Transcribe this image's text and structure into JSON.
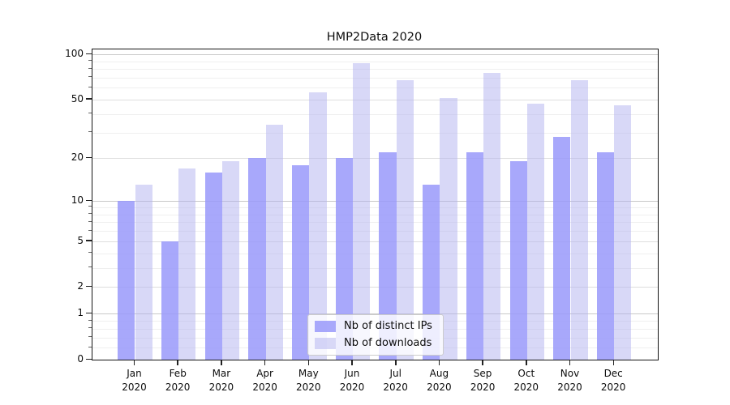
{
  "title": "HMP2Data 2020",
  "chart_data": {
    "type": "bar",
    "title": "HMP2Data 2020",
    "categories": [
      "Jan",
      "Feb",
      "Mar",
      "Apr",
      "May",
      "Jun",
      "Jul",
      "Aug",
      "Sep",
      "Oct",
      "Nov",
      "Dec"
    ],
    "category_year_line": "2020",
    "series": [
      {
        "name": "Nb of distinct IPs",
        "color": "#9999fa",
        "alpha": 0.85,
        "values": [
          10,
          5,
          16,
          20,
          18,
          20,
          22,
          13,
          22,
          19,
          28,
          22
        ]
      },
      {
        "name": "Nb of downloads",
        "color": "#b1b1ef",
        "alpha": 0.5,
        "values": [
          13,
          17,
          19,
          34,
          56,
          87,
          67,
          51,
          75,
          47,
          67,
          46
        ]
      }
    ],
    "xlabel": "",
    "ylabel": "",
    "yscale": "log10(1+x)",
    "yticks": [
      0,
      1,
      2,
      5,
      10,
      20,
      50,
      100
    ],
    "ylim": [
      0,
      108
    ],
    "grid": "horizontal major and minor",
    "legend_position": "lower center"
  }
}
